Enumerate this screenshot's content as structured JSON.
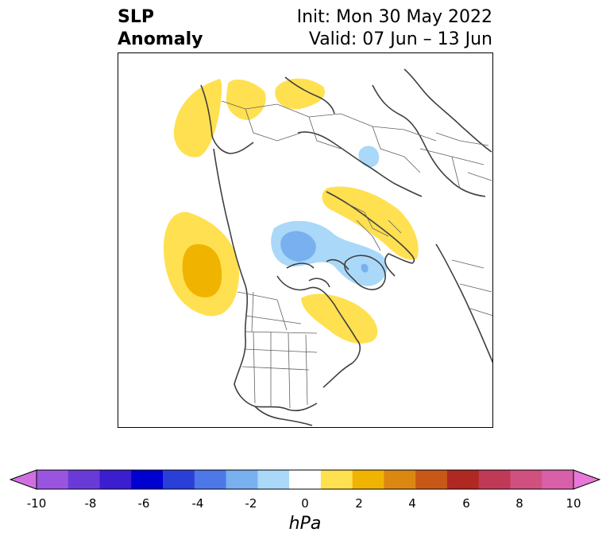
{
  "title": {
    "left_line1": "SLP",
    "left_line2": "Anomaly",
    "right_line1": "Init: Mon 30 May 2022",
    "right_line2": "Valid: 07 Jun – 13 Jun"
  },
  "colorbar": {
    "units": "hPa",
    "tick_labels": [
      "-10",
      "-8",
      "-6",
      "-4",
      "-2",
      "0",
      "2",
      "4",
      "6",
      "8",
      "10"
    ],
    "colors": [
      "#d070e0",
      "#9a55e0",
      "#6a3ad8",
      "#3a1ed0",
      "#0000d0",
      "#2a3fd8",
      "#4e78e8",
      "#78b0f0",
      "#aad8f8",
      "#ffffff",
      "#ffe050",
      "#f0b400",
      "#dc8810",
      "#c85818",
      "#b02822",
      "#c03a58",
      "#d05080",
      "#d860a8",
      "#e878d8"
    ]
  },
  "map": {
    "anomaly_colors": {
      "weak_positive": "#ffe050",
      "strong_positive": "#f0b400",
      "weak_negative": "#aad8f8",
      "strong_negative": "#78b0f0"
    }
  }
}
